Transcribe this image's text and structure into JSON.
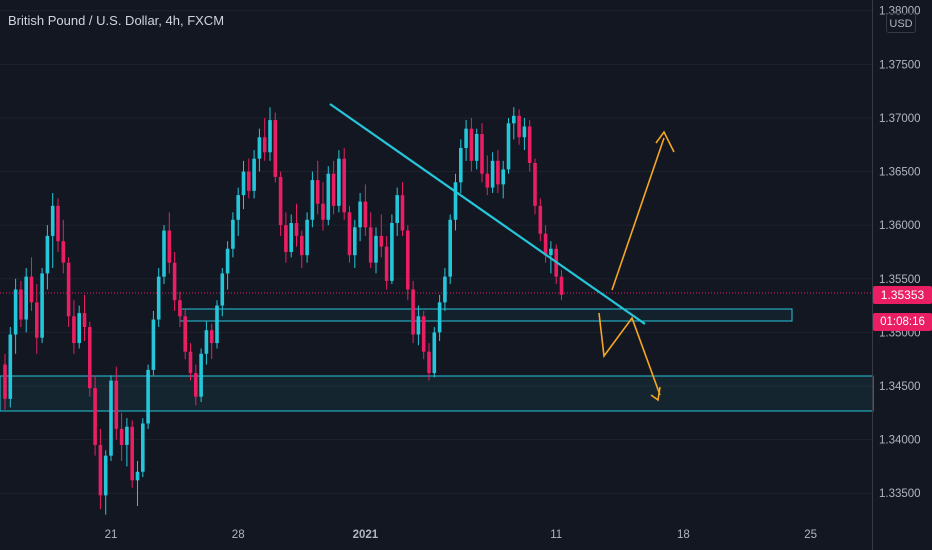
{
  "header": {
    "title": "British Pound / U.S. Dollar, 4h, FXCM",
    "currency_button": "USD"
  },
  "last_price": {
    "value": "1.35353",
    "countdown": "01:08:16",
    "color": "#e91e63"
  },
  "colors": {
    "background": "#131722",
    "up_candle": "#26c6da",
    "down_candle": "#e91e63",
    "trendline": "#26c6da",
    "zone_border": "#26c6da",
    "zone_fill": "#26c6da",
    "arrows": "#f5a623",
    "axis_text": "#b2b5be"
  },
  "chart_data": {
    "type": "candlestick",
    "symbol": "GBPUSD",
    "timeframe": "4h",
    "broker": "FXCM",
    "ylim": [
      1.3325,
      1.381
    ],
    "y_ticks": [
      "1.33500",
      "1.34000",
      "1.34500",
      "1.35000",
      "1.35500",
      "1.36000",
      "1.36500",
      "1.37000",
      "1.37500",
      "1.38000"
    ],
    "x_ticks": [
      {
        "label": "21",
        "index": 20
      },
      {
        "label": "28",
        "index": 44
      },
      {
        "label": "2021",
        "index": 68
      },
      {
        "label": "11",
        "index": 104
      },
      {
        "label": "18",
        "index": 128
      },
      {
        "label": "25",
        "index": 152
      }
    ],
    "candles": [
      [
        1.347,
        1.348,
        1.3428,
        1.3438
      ],
      [
        1.3438,
        1.3505,
        1.343,
        1.3498
      ],
      [
        1.3498,
        1.355,
        1.348,
        1.354
      ],
      [
        1.354,
        1.3548,
        1.3505,
        1.3512
      ],
      [
        1.3512,
        1.356,
        1.35,
        1.3552
      ],
      [
        1.3552,
        1.357,
        1.352,
        1.3528
      ],
      [
        1.3528,
        1.3545,
        1.348,
        1.3495
      ],
      [
        1.3495,
        1.356,
        1.349,
        1.3555
      ],
      [
        1.3555,
        1.36,
        1.354,
        1.359
      ],
      [
        1.359,
        1.363,
        1.356,
        1.3618
      ],
      [
        1.3618,
        1.3625,
        1.3575,
        1.3585
      ],
      [
        1.3585,
        1.3605,
        1.3555,
        1.3565
      ],
      [
        1.3565,
        1.357,
        1.3505,
        1.3515
      ],
      [
        1.3515,
        1.353,
        1.348,
        1.349
      ],
      [
        1.349,
        1.3525,
        1.3485,
        1.3518
      ],
      [
        1.3518,
        1.3535,
        1.3492,
        1.3505
      ],
      [
        1.3505,
        1.351,
        1.344,
        1.3448
      ],
      [
        1.3448,
        1.346,
        1.3385,
        1.3395
      ],
      [
        1.3395,
        1.341,
        1.3335,
        1.3348
      ],
      [
        1.3348,
        1.339,
        1.333,
        1.3385
      ],
      [
        1.3385,
        1.346,
        1.338,
        1.3455
      ],
      [
        1.3455,
        1.3468,
        1.34,
        1.341
      ],
      [
        1.341,
        1.3425,
        1.338,
        1.3395
      ],
      [
        1.3395,
        1.342,
        1.3375,
        1.3412
      ],
      [
        1.3412,
        1.3418,
        1.3355,
        1.3362
      ],
      [
        1.3362,
        1.338,
        1.3338,
        1.337
      ],
      [
        1.337,
        1.342,
        1.3365,
        1.3415
      ],
      [
        1.3415,
        1.347,
        1.341,
        1.3465
      ],
      [
        1.3465,
        1.352,
        1.346,
        1.3512
      ],
      [
        1.3512,
        1.356,
        1.3505,
        1.3552
      ],
      [
        1.3552,
        1.36,
        1.3545,
        1.3595
      ],
      [
        1.3595,
        1.3612,
        1.3555,
        1.3565
      ],
      [
        1.3565,
        1.3575,
        1.352,
        1.353
      ],
      [
        1.353,
        1.3538,
        1.3505,
        1.3515
      ],
      [
        1.3515,
        1.3522,
        1.3475,
        1.3482
      ],
      [
        1.3482,
        1.349,
        1.3455,
        1.3462
      ],
      [
        1.3462,
        1.347,
        1.3432,
        1.344
      ],
      [
        1.344,
        1.3485,
        1.3435,
        1.348
      ],
      [
        1.348,
        1.351,
        1.347,
        1.3502
      ],
      [
        1.3502,
        1.3508,
        1.3475,
        1.349
      ],
      [
        1.349,
        1.353,
        1.3485,
        1.3525
      ],
      [
        1.3525,
        1.356,
        1.3515,
        1.3555
      ],
      [
        1.3555,
        1.3585,
        1.354,
        1.3578
      ],
      [
        1.3578,
        1.3612,
        1.357,
        1.3605
      ],
      [
        1.3605,
        1.3635,
        1.359,
        1.3628
      ],
      [
        1.3628,
        1.366,
        1.3615,
        1.365
      ],
      [
        1.365,
        1.3662,
        1.3625,
        1.3632
      ],
      [
        1.3632,
        1.367,
        1.3625,
        1.3662
      ],
      [
        1.3662,
        1.369,
        1.365,
        1.3682
      ],
      [
        1.3682,
        1.37,
        1.366,
        1.3668
      ],
      [
        1.3668,
        1.371,
        1.366,
        1.3698
      ],
      [
        1.3698,
        1.3705,
        1.364,
        1.3645
      ],
      [
        1.3645,
        1.365,
        1.359,
        1.36
      ],
      [
        1.36,
        1.3612,
        1.3565,
        1.3575
      ],
      [
        1.3575,
        1.361,
        1.357,
        1.3602
      ],
      [
        1.3602,
        1.362,
        1.358,
        1.359
      ],
      [
        1.359,
        1.3595,
        1.356,
        1.3572
      ],
      [
        1.3572,
        1.3612,
        1.3565,
        1.3605
      ],
      [
        1.3605,
        1.365,
        1.3598,
        1.3642
      ],
      [
        1.3642,
        1.366,
        1.361,
        1.362
      ],
      [
        1.362,
        1.364,
        1.3595,
        1.3605
      ],
      [
        1.3605,
        1.3655,
        1.36,
        1.3648
      ],
      [
        1.3648,
        1.366,
        1.361,
        1.3618
      ],
      [
        1.3618,
        1.367,
        1.3612,
        1.3662
      ],
      [
        1.3662,
        1.3672,
        1.3605,
        1.3612
      ],
      [
        1.3612,
        1.3618,
        1.3565,
        1.3572
      ],
      [
        1.3572,
        1.3605,
        1.356,
        1.3598
      ],
      [
        1.3598,
        1.363,
        1.3585,
        1.3622
      ],
      [
        1.3622,
        1.3638,
        1.359,
        1.3598
      ],
      [
        1.3598,
        1.3612,
        1.356,
        1.3565
      ],
      [
        1.3565,
        1.3598,
        1.3555,
        1.359
      ],
      [
        1.359,
        1.361,
        1.357,
        1.358
      ],
      [
        1.358,
        1.359,
        1.354,
        1.3548
      ],
      [
        1.3548,
        1.361,
        1.3545,
        1.3602
      ],
      [
        1.3602,
        1.3635,
        1.359,
        1.3628
      ],
      [
        1.3628,
        1.364,
        1.359,
        1.3595
      ],
      [
        1.3595,
        1.36,
        1.353,
        1.354
      ],
      [
        1.354,
        1.3548,
        1.349,
        1.3498
      ],
      [
        1.3498,
        1.3525,
        1.3488,
        1.3515
      ],
      [
        1.3515,
        1.352,
        1.3475,
        1.3482
      ],
      [
        1.3482,
        1.349,
        1.3455,
        1.3462
      ],
      [
        1.3462,
        1.3505,
        1.3458,
        1.35
      ],
      [
        1.35,
        1.3535,
        1.3492,
        1.3528
      ],
      [
        1.3528,
        1.356,
        1.352,
        1.3552
      ],
      [
        1.3552,
        1.361,
        1.3545,
        1.3605
      ],
      [
        1.3605,
        1.3648,
        1.3595,
        1.364
      ],
      [
        1.364,
        1.368,
        1.363,
        1.3672
      ],
      [
        1.3672,
        1.3698,
        1.366,
        1.369
      ],
      [
        1.369,
        1.37,
        1.365,
        1.366
      ],
      [
        1.366,
        1.369,
        1.3652,
        1.3685
      ],
      [
        1.3685,
        1.3695,
        1.364,
        1.3648
      ],
      [
        1.3648,
        1.3665,
        1.3628,
        1.3635
      ],
      [
        1.3635,
        1.3668,
        1.363,
        1.366
      ],
      [
        1.366,
        1.367,
        1.363,
        1.3638
      ],
      [
        1.3638,
        1.366,
        1.3625,
        1.3652
      ],
      [
        1.3652,
        1.37,
        1.3648,
        1.3695
      ],
      [
        1.3695,
        1.371,
        1.368,
        1.3702
      ],
      [
        1.3702,
        1.3708,
        1.3675,
        1.3682
      ],
      [
        1.3682,
        1.37,
        1.367,
        1.3692
      ],
      [
        1.3692,
        1.3698,
        1.365,
        1.3658
      ],
      [
        1.3658,
        1.3662,
        1.361,
        1.3618
      ],
      [
        1.3618,
        1.3625,
        1.3585,
        1.3592
      ],
      [
        1.3592,
        1.36,
        1.3565,
        1.3572
      ],
      [
        1.3572,
        1.3585,
        1.3555,
        1.3578
      ],
      [
        1.3578,
        1.3582,
        1.3545,
        1.3552
      ],
      [
        1.3552,
        1.3558,
        1.353,
        1.3535
      ]
    ]
  }
}
